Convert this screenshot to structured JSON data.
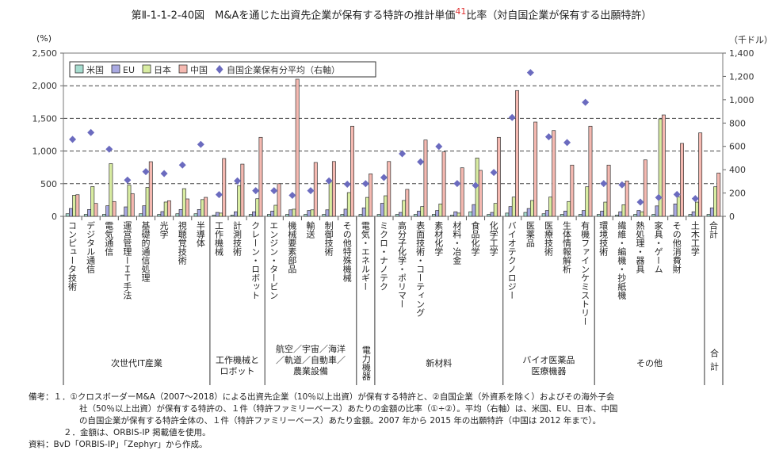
{
  "title": {
    "main": "第Ⅱ-1-1-2-40図　M&Aを通じた出資先企業が保有する特許の推計単価",
    "sup": "41",
    "tail": "比率（対自国企業が保有する出願特許）"
  },
  "chart_data": {
    "type": "bar",
    "left_unit": "(%)",
    "right_unit": "（千ドル）",
    "ylim": [
      0,
      2500
    ],
    "yticks": [
      "0",
      "500",
      "1,000",
      "1,500",
      "2,000",
      "2,500"
    ],
    "y2lim": [
      0,
      1400
    ],
    "y2ticks": [
      "0",
      "200",
      "400",
      "600",
      "800",
      "1,000",
      "1,200",
      "1,400"
    ],
    "grid": "dashed horizontal",
    "legend_placement": "top-left",
    "categories": [
      "コンピュータ技術",
      "デジタル通信",
      "電気通信",
      "運営管理ーＩＴ手法",
      "基礎的通信処理",
      "光学",
      "視聴覚技術",
      "半導体",
      "工作機械",
      "計測技術",
      "クレーン・ロボット",
      "エンジン・タービン",
      "機械要素部品",
      "輸送",
      "制御技術",
      "その他特殊機械",
      "電気・エネルギー",
      "ミクロ・ナノテク",
      "高分子化学・ポリマー",
      "表面技術・コーティング",
      "素材化学",
      "材料・冶金",
      "食品化学",
      "化学工学",
      "バイオテクノロジー",
      "医薬品",
      "医療技術",
      "生体情報解析",
      "有機ファインケミストリー",
      "環境技術",
      "繊維・編機・抄紙機",
      "熱処理・器具",
      "家具・ゲーム",
      "その他消費財",
      "土木工学",
      "合計"
    ],
    "groups": [
      {
        "label": "次世代IT産業",
        "start": 0,
        "end": 7
      },
      {
        "label": "工作機械と\nロボット",
        "start": 8,
        "end": 10
      },
      {
        "label": "航空／宇宙／海洋\n／軌道／自動車／\n農業設備",
        "start": 11,
        "end": 15
      },
      {
        "label": "電力機器",
        "start": 16,
        "end": 16,
        "vertical": true
      },
      {
        "label": "新材料",
        "start": 17,
        "end": 23
      },
      {
        "label": "バイオ医薬品\n医療機器",
        "start": 24,
        "end": 28
      },
      {
        "label": "その他",
        "start": 29,
        "end": 34
      },
      {
        "label": "合計",
        "start": 35,
        "end": 35,
        "vertical": true
      }
    ],
    "series": [
      {
        "name": "米国",
        "color": "#a6dccf",
        "values": [
          40,
          30,
          30,
          20,
          40,
          30,
          40,
          40,
          20,
          20,
          30,
          30,
          30,
          30,
          30,
          30,
          30,
          30,
          30,
          30,
          30,
          20,
          70,
          30,
          50,
          60,
          40,
          30,
          30,
          30,
          20,
          30,
          30,
          20,
          30,
          30
        ]
      },
      {
        "name": "EU",
        "color": "#a9a9e2",
        "values": [
          120,
          105,
          162,
          145,
          162,
          73,
          105,
          105,
          60,
          70,
          70,
          80,
          100,
          90,
          100,
          110,
          130,
          200,
          60,
          80,
          90,
          70,
          180,
          60,
          150,
          120,
          90,
          80,
          90,
          80,
          70,
          90,
          160,
          190,
          70,
          130
        ]
      },
      {
        "name": "日本",
        "color": "#d9eda2",
        "values": [
          323,
          457,
          807,
          478,
          443,
          219,
          424,
          257,
          50,
          470,
          270,
          170,
          110,
          100,
          540,
          364,
          290,
          315,
          243,
          150,
          190,
          50,
          894,
          198,
          295,
          243,
          295,
          227,
          453,
          218,
          178,
          70,
          1493,
          300,
          218,
          453
        ]
      },
      {
        "name": "中国",
        "color": "#f5b9b1",
        "values": [
          331,
          198,
          227,
          348,
          837,
          239,
          267,
          291,
          886,
          800,
          1210,
          500,
          2100,
          825,
          840,
          1380,
          651,
          840,
          413,
          1169,
          987,
          744,
          704,
          1210,
          1926,
          1444,
          1314,
          785,
          1380,
          785,
          542,
          865,
          1553,
          1117,
          1278,
          664
        ]
      },
      {
        "name": "自国企業保有分平均（右軸）",
        "color": "#6b6bbf",
        "axis": "right",
        "marker": "diamond",
        "values": [
          660,
          719,
          576,
          311,
          383,
          367,
          440,
          617,
          186,
          304,
          220,
          220,
          180,
          220,
          304,
          275,
          280,
          333,
          537,
          467,
          599,
          281,
          265,
          376,
          848,
          1233,
          682,
          633,
          978,
          281,
          270,
          122,
          161,
          188,
          152,
          null
        ]
      }
    ]
  },
  "notes": {
    "n1a": "備考：１．①クロスボーダーM&A（2007～2018）による出資先企業（10％以上出資）が保有する特許と、②自国企業（外資系を除く）およびその海外子会",
    "n1b": "社（50％以上出資）が保有する特許の、１件（特許ファミリーベース）あたりの金額の比率（①÷②）。平均（右軸）は、米国、EU、日本、中国",
    "n1c": "の自国企業が保有する特許全体の、１件（特許ファミリーベース）あたり金額。2007 年から 2015 年の出願特許（中国は 2012 年まで）。",
    "n2": "２．金額は、ORBIS-IP 掲載値を使用。",
    "src": "資料：BvD「ORBIS-IP」「Zephyr」から作成。"
  }
}
